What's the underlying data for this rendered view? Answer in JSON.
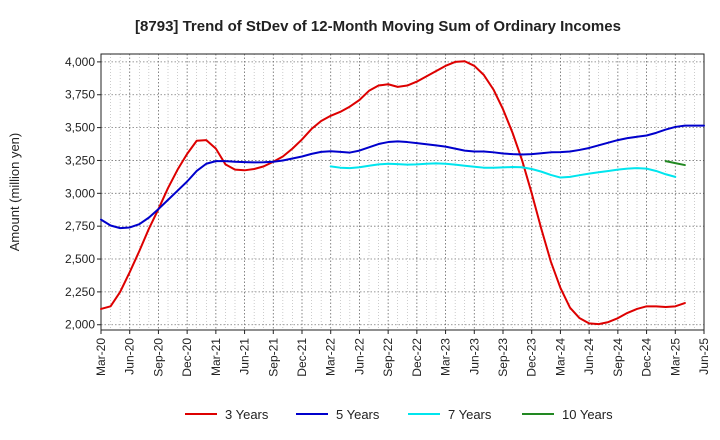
{
  "chart_data": {
    "type": "line",
    "title": "[8793]  Trend of StDev of 12-Month Moving Sum of Ordinary Incomes",
    "xlabel": "",
    "ylabel": "Amount (million yen)",
    "ylim": [
      1960,
      4060
    ],
    "yticks": [
      2000,
      2250,
      2500,
      2750,
      3000,
      3250,
      3500,
      3750,
      4000
    ],
    "ytick_labels": [
      "2,000",
      "2,250",
      "2,500",
      "2,750",
      "3,000",
      "3,250",
      "3,500",
      "3,750",
      "4,000"
    ],
    "xticks": [
      "Mar-20",
      "Jun-20",
      "Sep-20",
      "Dec-20",
      "Mar-21",
      "Jun-21",
      "Sep-21",
      "Dec-21",
      "Mar-22",
      "Jun-22",
      "Sep-22",
      "Dec-22",
      "Mar-23",
      "Jun-23",
      "Sep-23",
      "Dec-23",
      "Mar-24",
      "Jun-24",
      "Sep-24",
      "Dec-24",
      "Mar-25",
      "Jun-25"
    ],
    "x_start_month": "Mar-20",
    "grid": true,
    "legend_position": "bottom",
    "series": [
      {
        "name": "3 Years",
        "color": "#dd0000",
        "start_index": 0,
        "values": [
          2120,
          2140,
          2250,
          2400,
          2560,
          2730,
          2880,
          3040,
          3180,
          3300,
          3400,
          3405,
          3340,
          3220,
          3180,
          3175,
          3185,
          3205,
          3240,
          3280,
          3340,
          3410,
          3490,
          3550,
          3590,
          3620,
          3660,
          3710,
          3780,
          3820,
          3830,
          3810,
          3820,
          3850,
          3890,
          3930,
          3970,
          4000,
          4005,
          3970,
          3900,
          3790,
          3640,
          3460,
          3250,
          3000,
          2730,
          2480,
          2280,
          2130,
          2050,
          2010,
          2005,
          2020,
          2050,
          2090,
          2120,
          2140,
          2140,
          2135,
          2140,
          2165
        ]
      },
      {
        "name": "5 Years",
        "color": "#0000cc",
        "start_index": 0,
        "values": [
          2800,
          2755,
          2735,
          2740,
          2765,
          2815,
          2880,
          2950,
          3020,
          3090,
          3170,
          3225,
          3245,
          3245,
          3240,
          3237,
          3235,
          3236,
          3240,
          3250,
          3265,
          3280,
          3300,
          3315,
          3320,
          3315,
          3310,
          3325,
          3350,
          3375,
          3390,
          3395,
          3390,
          3382,
          3373,
          3365,
          3355,
          3340,
          3325,
          3318,
          3318,
          3312,
          3303,
          3298,
          3295,
          3298,
          3305,
          3312,
          3313,
          3318,
          3330,
          3345,
          3365,
          3385,
          3405,
          3420,
          3430,
          3440,
          3460,
          3485,
          3505,
          3515,
          3515,
          3515
        ]
      },
      {
        "name": "7 Years",
        "color": "#00e5ee",
        "start_index": 24,
        "values": [
          3205,
          3195,
          3192,
          3198,
          3210,
          3220,
          3225,
          3222,
          3218,
          3220,
          3225,
          3228,
          3225,
          3218,
          3210,
          3202,
          3195,
          3195,
          3197,
          3200,
          3198,
          3185,
          3165,
          3140,
          3120,
          3125,
          3138,
          3150,
          3160,
          3170,
          3180,
          3188,
          3192,
          3188,
          3170,
          3145,
          3125
        ]
      },
      {
        "name": "10 Years",
        "color": "#228822",
        "start_index": 59,
        "values": [
          3245,
          3230,
          3215
        ]
      }
    ]
  }
}
